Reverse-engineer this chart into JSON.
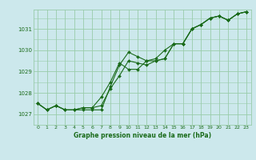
{
  "title": "Graphe pression niveau de la mer (hPa)",
  "bg_color": "#cce8ec",
  "grid_color": "#99ccaa",
  "line_color": "#1a6b1a",
  "xlim": [
    -0.5,
    23.5
  ],
  "ylim": [
    1026.5,
    1031.9
  ],
  "yticks": [
    1027,
    1028,
    1029,
    1030,
    1031
  ],
  "xticks": [
    0,
    1,
    2,
    3,
    4,
    5,
    6,
    7,
    8,
    9,
    10,
    11,
    12,
    13,
    14,
    15,
    16,
    17,
    18,
    19,
    20,
    21,
    22,
    23
  ],
  "series": [
    [
      1027.5,
      1027.2,
      1027.4,
      1027.2,
      1027.2,
      1027.2,
      1027.2,
      1027.2,
      1028.3,
      1029.3,
      1029.9,
      1029.7,
      1029.5,
      1029.5,
      1029.6,
      1030.3,
      1030.3,
      1031.0,
      1031.2,
      1031.5,
      1031.6,
      1031.4,
      1031.7,
      1031.8
    ],
    [
      1027.5,
      1027.2,
      1027.4,
      1027.2,
      1027.2,
      1027.3,
      1027.3,
      1027.8,
      1028.5,
      1029.4,
      1029.1,
      1029.1,
      1029.5,
      1029.6,
      1030.0,
      1030.3,
      1030.3,
      1031.0,
      1031.2,
      1031.5,
      1031.6,
      1031.4,
      1031.7,
      1031.8
    ],
    [
      1027.5,
      1027.2,
      1027.4,
      1027.2,
      1027.2,
      1027.3,
      1027.3,
      1027.4,
      1028.2,
      1028.8,
      1029.5,
      1029.4,
      1029.3,
      1029.5,
      1029.6,
      1030.3,
      1030.3,
      1031.0,
      1031.2,
      1031.5,
      1031.6,
      1031.4,
      1031.7,
      1031.8
    ]
  ]
}
